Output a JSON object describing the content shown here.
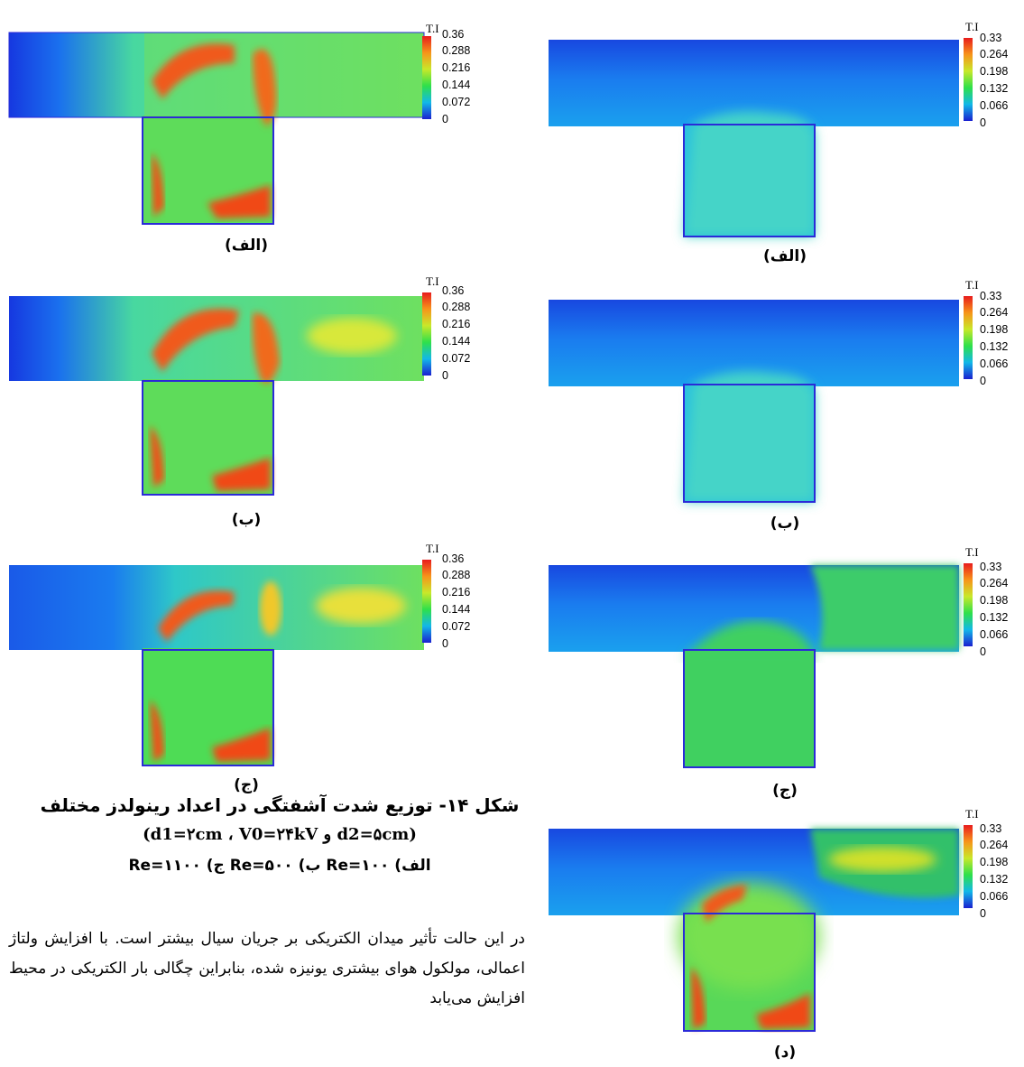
{
  "left_column": {
    "colorbar": {
      "title": "T.I",
      "ticks": [
        "0.36",
        "0.288",
        "0.216",
        "0.144",
        "0.072",
        "0"
      ]
    },
    "panels": [
      {
        "label": "(الف)"
      },
      {
        "label": "(ب)"
      },
      {
        "label": "(ج)"
      }
    ]
  },
  "right_column": {
    "colorbar": {
      "title": "T.I",
      "ticks": [
        "0.33",
        "0.264",
        "0.198",
        "0.132",
        "0.066",
        "0"
      ]
    },
    "panels": [
      {
        "label": "(الف)"
      },
      {
        "label": "(ب)"
      },
      {
        "label": "(ج)"
      },
      {
        "label": "(د)"
      }
    ]
  },
  "caption": {
    "line1": "شکل ۱۴- توزیع شدت آشفتگی در اعداد رینولدز مختلف",
    "line2": "(d2=۵cm و d1=۲cm ، V0=۲۴kV)",
    "line3": "الف) Re=۱۰۰ ب) Re=۵۰۰ ج) Re=۱۱۰۰"
  },
  "body_text": "در این حالت تأثیر میدان الکتریکی بر جریان سیال بیشتر است. با افزایش ولتاژ اعمالی، مولکول هوای بیشتری یونیزه شده، بنابراین چگالی بار الکتریکی در محیط افزایش می‌یابد",
  "colors": {
    "blue": "#1a2bd8",
    "cyan": "#18b8e8",
    "green": "#3ddc3d",
    "yellow": "#e8e82c",
    "orange": "#f79a1a",
    "red": "#e81c1c"
  }
}
